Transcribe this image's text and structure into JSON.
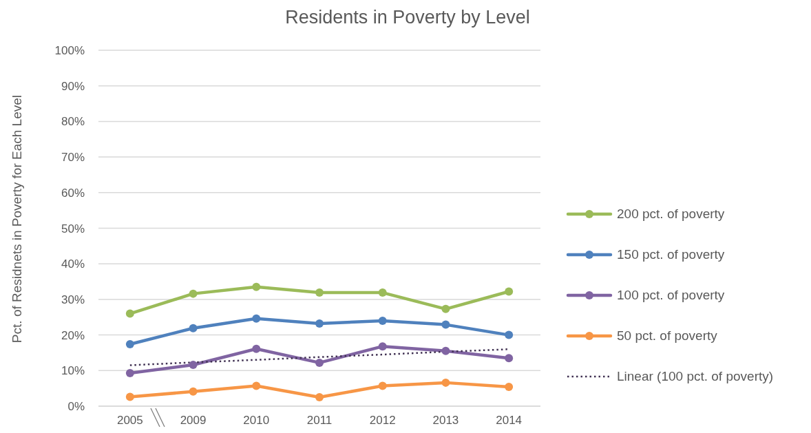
{
  "chart_data": {
    "type": "line",
    "title": "Residents in Poverty by Level",
    "ylabel": "Pct. of Residnets in Poverty for Each Level",
    "categories": [
      "2005",
      "2009",
      "2010",
      "2011",
      "2012",
      "2013",
      "2014"
    ],
    "series": [
      {
        "name": "200 pct. of poverty",
        "color": "#9bbb59",
        "values": [
          26.0,
          31.6,
          33.5,
          31.9,
          31.9,
          27.3,
          32.2
        ]
      },
      {
        "name": "150 pct. of poverty",
        "color": "#4f81bd",
        "values": [
          17.4,
          21.9,
          24.6,
          23.2,
          24.0,
          22.9,
          20.0
        ]
      },
      {
        "name": "100 pct. of poverty",
        "color": "#8064a2",
        "values": [
          9.3,
          11.6,
          16.1,
          12.2,
          16.8,
          15.5,
          13.5
        ]
      },
      {
        "name": "50 pct. of poverty",
        "color": "#f79646",
        "values": [
          2.6,
          4.1,
          5.7,
          2.5,
          5.7,
          6.6,
          5.4
        ]
      },
      {
        "name": "Linear (100 pct. of poverty)",
        "type": "line",
        "color": "#403152",
        "line_style": "dotted",
        "marker": "none",
        "values": [
          11.5,
          12.3,
          13.0,
          13.8,
          14.5,
          15.3,
          16.0
        ]
      }
    ],
    "ylim": [
      0,
      100
    ],
    "yticks": [
      {
        "value": 0,
        "label": "0%"
      },
      {
        "value": 10,
        "label": "10%"
      },
      {
        "value": 20,
        "label": "20%"
      },
      {
        "value": 30,
        "label": "30%"
      },
      {
        "value": 40,
        "label": "40%"
      },
      {
        "value": 50,
        "label": "50%"
      },
      {
        "value": 60,
        "label": "60%"
      },
      {
        "value": 70,
        "label": "70%"
      },
      {
        "value": 80,
        "label": "80%"
      },
      {
        "value": 90,
        "label": "90%"
      },
      {
        "value": 100,
        "label": "100%"
      }
    ],
    "grid": "y",
    "legend": "right",
    "marker": "circle",
    "line_style": "solid"
  }
}
